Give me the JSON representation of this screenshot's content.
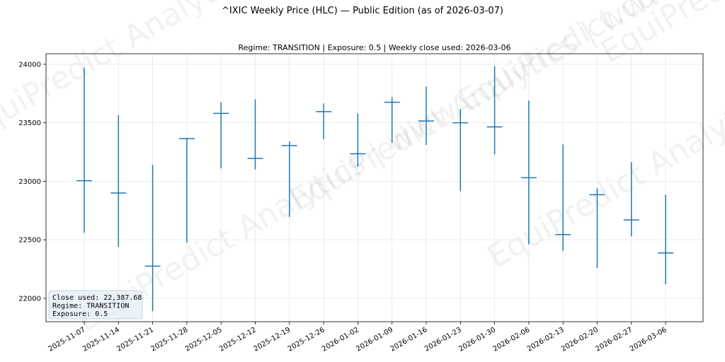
{
  "figure_title": "^IXIC Weekly Price (HLC) — Public Edition (as of 2026-03-07)",
  "watermark_text": "EquiPredict Analytics | www.EquiPredict.com",
  "info_box": {
    "lines": [
      "Close used: 22,387.68",
      "Regime: TRANSITION",
      "Exposure: 0.5"
    ],
    "background": "#e8eff6",
    "border": "#b9c9d9"
  },
  "colors": {
    "series": "#1f77b4",
    "grid": "#e6e6e6"
  },
  "chart_data": {
    "type": "hlc",
    "title": "Regime: TRANSITION | Exposure: 0.5 | Weekly close used: 2026-03-06",
    "xlabel": "",
    "ylabel": "",
    "grid": true,
    "ylim": [
      21800,
      24090
    ],
    "yticks": [
      22000,
      22500,
      23000,
      23500,
      24000
    ],
    "ytick_labels": [
      "22000",
      "22500",
      "23000",
      "23500",
      "24000"
    ],
    "x": [
      "2025-11-07",
      "2025-11-14",
      "2025-11-21",
      "2025-11-28",
      "2025-12-05",
      "2025-12-12",
      "2025-12-19",
      "2025-12-26",
      "2026-01-02",
      "2026-01-09",
      "2026-01-16",
      "2026-01-23",
      "2026-01-30",
      "2026-02-06",
      "2026-02-13",
      "2026-02-20",
      "2026-02-27",
      "2026-03-06"
    ],
    "high": [
      23970,
      23565,
      23140,
      23370,
      23675,
      23700,
      23340,
      23665,
      23580,
      23720,
      23810,
      23615,
      23985,
      23690,
      23315,
      22940,
      23165,
      22885
    ],
    "low": [
      22560,
      22440,
      21890,
      22475,
      23110,
      23100,
      22695,
      23360,
      23125,
      23330,
      23310,
      22915,
      23230,
      22460,
      22405,
      22260,
      22530,
      22120
    ],
    "close": [
      23005,
      22900,
      22275,
      23365,
      23580,
      23195,
      23305,
      23595,
      23235,
      23675,
      23515,
      23500,
      23465,
      23030,
      22545,
      22885,
      22670,
      22387.68
    ]
  }
}
